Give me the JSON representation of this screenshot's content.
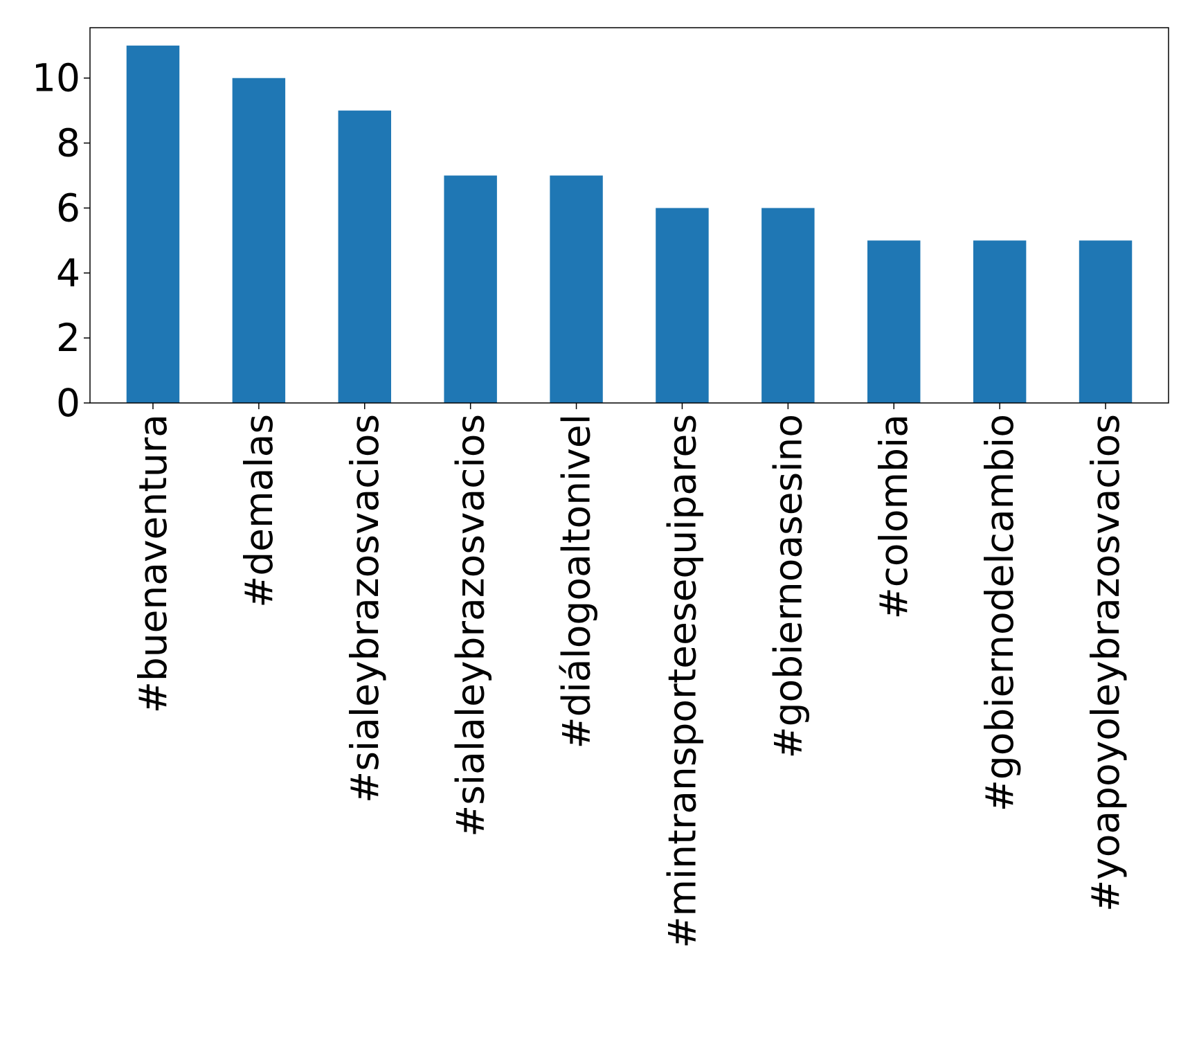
{
  "chart_data": {
    "type": "bar",
    "title": "",
    "xlabel": "",
    "ylabel": "",
    "categories": [
      "#buenaventura",
      "#demalas",
      "#sialeybrazosvacios",
      "#sialaleybrazosvacios",
      "#diálogoaltonivel",
      "#mintransporteesequipares",
      "#gobiernoasesino",
      "#colombia",
      "#gobiernodelcambio",
      "#yoapoyoleybrazosvacios"
    ],
    "values": [
      11,
      10,
      9,
      7,
      7,
      6,
      6,
      5,
      5,
      5
    ],
    "ylim": [
      0,
      11.55
    ],
    "yticks": [
      0,
      2,
      4,
      6,
      8,
      10
    ],
    "bar_color": "#1f77b4",
    "grid": false,
    "legend": "none"
  }
}
